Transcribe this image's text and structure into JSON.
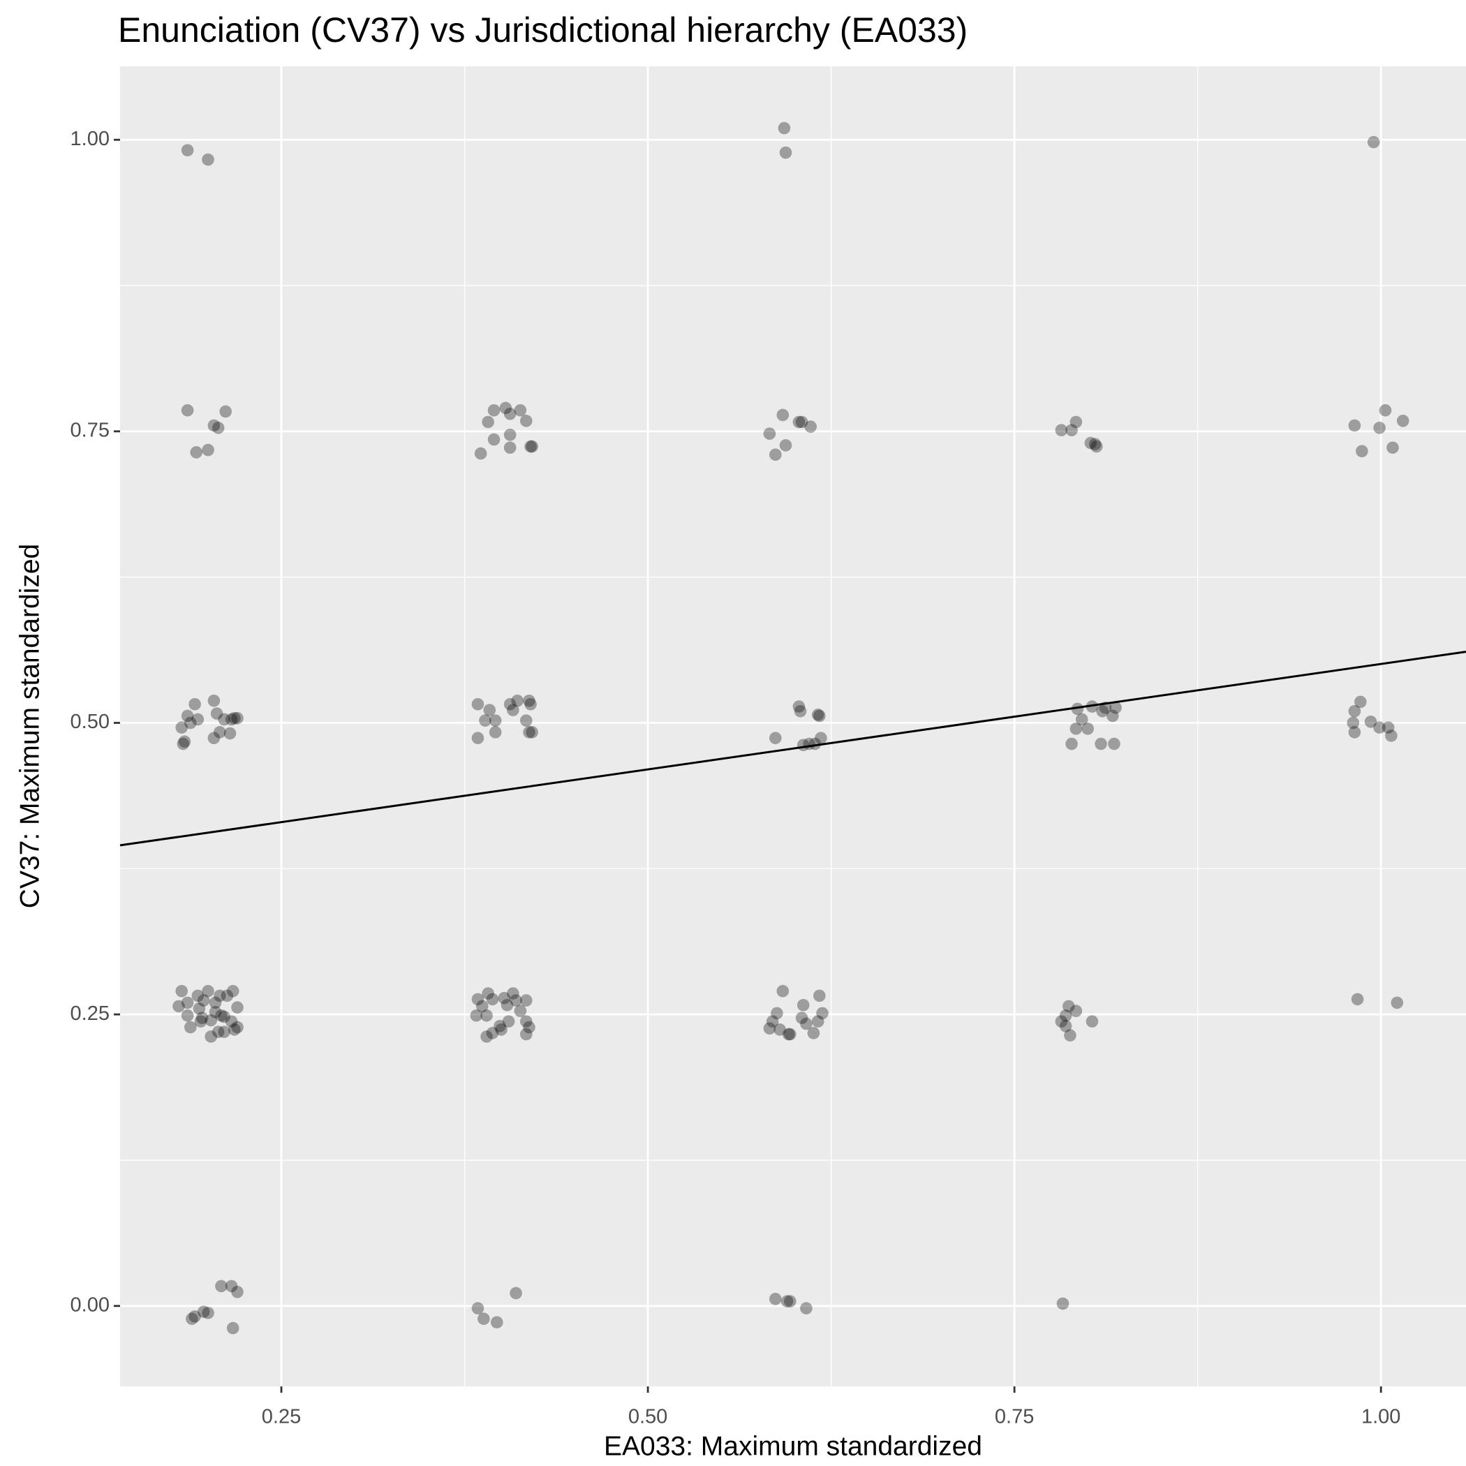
{
  "chart_data": {
    "type": "scatter",
    "title": "Enunciation (CV37) vs Jurisdictional hierarchy (EA033)",
    "x_label": "EA033: Maximum standardized",
    "y_label": "CV37: Maximum standardized",
    "xlim": [
      0.14,
      1.058
    ],
    "ylim": [
      -0.069,
      1.063
    ],
    "xticks": [
      0.25,
      {
        "value": 0.5,
        "label": "0.50"
      },
      0.75,
      {
        "value": 1,
        "label": "1.00"
      }
    ],
    "yticks": [
      {
        "value": 0,
        "label": "0.00"
      },
      0.25,
      {
        "value": 0.5,
        "label": "0.50"
      },
      0.75,
      {
        "value": 1,
        "label": "1.00"
      }
    ],
    "x_minor_ticks": [
      0.375,
      0.625,
      0.875
    ],
    "y_minor_ticks": [
      0.125,
      0.375,
      0.625,
      0.875
    ],
    "grid": true,
    "color": "#000000",
    "x": [
      0.186,
      0.2,
      0.186,
      0.212,
      0.204,
      0.207,
      0.192,
      0.2,
      0.204,
      0.191,
      0.186,
      0.206,
      0.193,
      0.188,
      0.182,
      0.211,
      0.22,
      0.216,
      0.218,
      0.208,
      0.215,
      0.204,
      0.184,
      0.183,
      0.182,
      0.193,
      0.2,
      0.217,
      0.208,
      0.186,
      0.197,
      0.205,
      0.213,
      0.18,
      0.22,
      0.194,
      0.205,
      0.209,
      0.186,
      0.196,
      0.211,
      0.216,
      0.202,
      0.188,
      0.207,
      0.211,
      0.218,
      0.22,
      0.202,
      0.195,
      0.209,
      0.216,
      0.22,
      0.197,
      0.2,
      0.191,
      0.189,
      0.217,
      0.403,
      0.395,
      0.413,
      0.406,
      0.417,
      0.391,
      0.406,
      0.395,
      0.406,
      0.42,
      0.421,
      0.386,
      0.384,
      0.411,
      0.419,
      0.42,
      0.406,
      0.392,
      0.408,
      0.419,
      0.389,
      0.396,
      0.417,
      0.396,
      0.421,
      0.384,
      0.391,
      0.408,
      0.402,
      0.384,
      0.417,
      0.394,
      0.387,
      0.404,
      0.41,
      0.39,
      0.383,
      0.413,
      0.405,
      0.417,
      0.399,
      0.419,
      0.417,
      0.394,
      0.4,
      0.39,
      0.41,
      0.384,
      0.388,
      0.397,
      0.593,
      0.594,
      0.592,
      0.603,
      0.605,
      0.611,
      0.583,
      0.594,
      0.587,
      0.603,
      0.604,
      0.616,
      0.617,
      0.587,
      0.606,
      0.61,
      0.618,
      0.614,
      0.592,
      0.617,
      0.606,
      0.588,
      0.619,
      0.585,
      0.605,
      0.616,
      0.608,
      0.583,
      0.59,
      0.597,
      0.613,
      0.596,
      0.587,
      0.597,
      0.595,
      0.608,
      0.782,
      0.789,
      0.792,
      0.802,
      0.805,
      0.806,
      0.793,
      0.803,
      0.812,
      0.819,
      0.796,
      0.817,
      0.81,
      0.792,
      0.8,
      0.789,
      0.809,
      0.818,
      0.787,
      0.792,
      0.785,
      0.782,
      0.785,
      0.803,
      0.788,
      0.783,
      0.995,
      1.003,
      1.015,
      0.982,
      0.999,
      1.008,
      0.987,
      0.986,
      0.982,
      0.993,
      0.981,
      1.005,
      0.999,
      1.007,
      0.982,
      0.984,
      1.011
    ],
    "y": [
      0.991,
      0.983,
      0.768,
      0.767,
      0.755,
      0.753,
      0.732,
      0.734,
      0.519,
      0.516,
      0.506,
      0.508,
      0.503,
      0.5,
      0.496,
      0.503,
      0.504,
      0.503,
      0.504,
      0.492,
      0.491,
      0.487,
      0.484,
      0.482,
      0.27,
      0.266,
      0.27,
      0.27,
      0.266,
      0.26,
      0.262,
      0.26,
      0.266,
      0.257,
      0.256,
      0.255,
      0.252,
      0.249,
      0.249,
      0.247,
      0.248,
      0.244,
      0.245,
      0.239,
      0.235,
      0.235,
      0.237,
      0.239,
      0.231,
      0.244,
      0.017,
      0.017,
      0.012,
      -0.005,
      -0.006,
      -0.009,
      -0.011,
      -0.019,
      0.77,
      0.768,
      0.768,
      0.765,
      0.759,
      0.758,
      0.747,
      0.743,
      0.736,
      0.737,
      0.737,
      0.731,
      0.516,
      0.519,
      0.519,
      0.516,
      0.516,
      0.511,
      0.511,
      0.492,
      0.502,
      0.502,
      0.502,
      0.492,
      0.492,
      0.487,
      0.268,
      0.268,
      0.264,
      0.263,
      0.262,
      0.263,
      0.257,
      0.258,
      0.262,
      0.249,
      0.249,
      0.253,
      0.244,
      0.244,
      0.24,
      0.239,
      0.233,
      0.234,
      0.237,
      0.231,
      0.011,
      -0.002,
      -0.011,
      -0.014,
      1.01,
      0.989,
      0.764,
      0.758,
      0.758,
      0.754,
      0.748,
      0.738,
      0.73,
      0.514,
      0.51,
      0.507,
      0.506,
      0.487,
      0.481,
      0.482,
      0.487,
      0.482,
      0.27,
      0.266,
      0.258,
      0.251,
      0.251,
      0.244,
      0.247,
      0.244,
      0.242,
      0.238,
      0.237,
      0.233,
      0.234,
      0.233,
      0.006,
      0.004,
      0.004,
      -0.002,
      0.751,
      0.751,
      0.758,
      0.74,
      0.739,
      0.737,
      0.512,
      0.514,
      0.513,
      0.513,
      0.503,
      0.506,
      0.51,
      0.495,
      0.495,
      0.482,
      0.482,
      0.482,
      0.257,
      0.253,
      0.249,
      0.244,
      0.24,
      0.244,
      0.232,
      0.002,
      0.998,
      0.768,
      0.759,
      0.755,
      0.753,
      0.736,
      0.733,
      0.518,
      0.51,
      0.501,
      0.5,
      0.496,
      0.496,
      0.489,
      0.492,
      0.263,
      0.26
    ],
    "trend_line": {
      "x": [
        0.14,
        1.058
      ],
      "y": [
        0.395,
        0.561
      ],
      "color": "#000000"
    }
  }
}
